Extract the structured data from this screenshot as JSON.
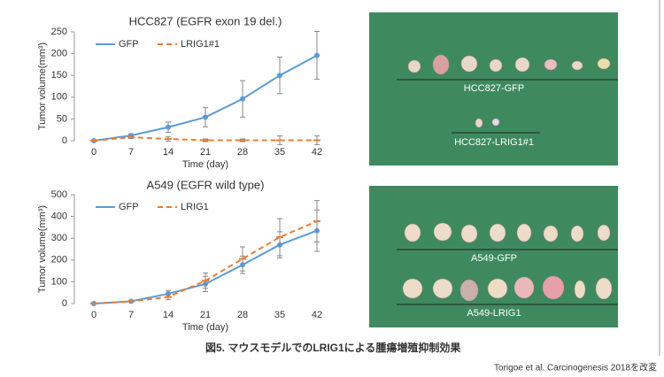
{
  "chart_data": [
    {
      "type": "line",
      "title": "HCC827 (EGFR exon 19 del.)",
      "xlabel": "Time (day)",
      "ylabel": "Tumor volume(mm³)",
      "x": [
        0,
        7,
        14,
        21,
        28,
        35,
        42
      ],
      "xlim": [
        0,
        42
      ],
      "xticks": [
        0,
        7,
        14,
        21,
        28,
        35,
        42
      ],
      "ylim": [
        0,
        250
      ],
      "yticks": [
        0,
        50,
        100,
        150,
        200,
        250
      ],
      "legend": "upper left",
      "series": [
        {
          "name": "GFP",
          "color": "#5b9bd5",
          "linestyle": "solid",
          "marker": "circle",
          "values": [
            0,
            12,
            31,
            54,
            96,
            150,
            196
          ],
          "errors": [
            0,
            3,
            12,
            22,
            42,
            42,
            55
          ]
        },
        {
          "name": "LRIG1#1",
          "color": "#ed7d31",
          "linestyle": "dashed",
          "marker": "dash",
          "values": [
            0,
            8,
            4,
            1,
            1,
            1,
            1
          ],
          "errors": [
            0,
            3,
            5,
            3,
            3,
            10,
            10
          ]
        }
      ]
    },
    {
      "type": "line",
      "title": "A549 (EGFR wild type)",
      "xlabel": "Time (day)",
      "ylabel": "Tumor volume(mm³)",
      "x": [
        0,
        7,
        14,
        21,
        28,
        35,
        42
      ],
      "xlim": [
        0,
        42
      ],
      "xticks": [
        0,
        7,
        14,
        21,
        28,
        35,
        42
      ],
      "ylim": [
        0,
        500
      ],
      "yticks": [
        0,
        100,
        200,
        300,
        400,
        500
      ],
      "legend": "upper left",
      "series": [
        {
          "name": "GFP",
          "color": "#5b9bd5",
          "linestyle": "solid",
          "marker": "circle",
          "values": [
            0,
            10,
            45,
            90,
            178,
            270,
            335
          ],
          "errors": [
            0,
            3,
            15,
            35,
            40,
            60,
            95
          ]
        },
        {
          "name": "LRIG1",
          "color": "#ed7d31",
          "linestyle": "dashed",
          "marker": "dash",
          "values": [
            0,
            10,
            30,
            105,
            205,
            305,
            378
          ],
          "errors": [
            0,
            3,
            12,
            35,
            55,
            85,
            95
          ]
        }
      ]
    }
  ],
  "photos": [
    {
      "labels": [
        "HCC827-GFP",
        "HCC827-LRIG1#1"
      ]
    },
    {
      "labels": [
        "A549-GFP",
        "A549-LRIG1"
      ]
    }
  ],
  "caption": "図5. マウスモデルでのLRIG1による腫瘍増殖抑制効果",
  "credit": "Torigoe et al. Carcinogenesis 2018を改変"
}
